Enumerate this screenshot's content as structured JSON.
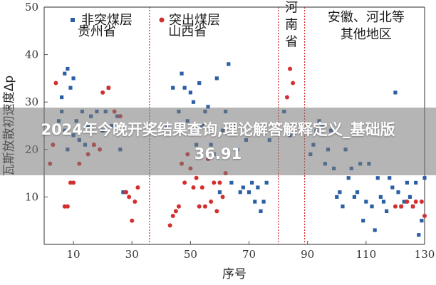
{
  "banner": {
    "title": "2024年今晚开奖结果查询,理论解答解释定义_基础版36.91"
  },
  "colors": {
    "non_outburst": "#2b5fa3",
    "outburst": "#d32f2f",
    "divider": "#d32f2f",
    "axis": "#555555"
  },
  "chart_data": {
    "type": "scatter",
    "xlabel": "序号",
    "ylabel": "瓦斯放散初速度Δp",
    "xlim": [
      0,
      130
    ],
    "ylim": [
      0,
      50
    ],
    "xticks": [
      10,
      30,
      50,
      70,
      90,
      110,
      130
    ],
    "yticks": [
      10,
      20,
      30,
      40,
      50
    ],
    "tick_labels_x": [
      "10",
      "30",
      "50",
      "70",
      "90",
      "110",
      "130"
    ],
    "tick_labels_y": [
      "10",
      "20",
      "30",
      "40",
      "50"
    ],
    "legend": [
      {
        "name": "非突煤层",
        "marker": "square"
      },
      {
        "name": "突出煤层",
        "marker": "circle"
      }
    ],
    "dividers": [
      36,
      80,
      89
    ],
    "regions": [
      {
        "lines": [
          "贵州省"
        ],
        "x_center": 18,
        "y_top": 44
      },
      {
        "lines": [
          "山西省"
        ],
        "x_center": 49,
        "y_top": 44
      },
      {
        "lines": [
          "河",
          "南",
          "省"
        ],
        "x_center": 84.5,
        "y_top": 49
      },
      {
        "lines": [
          "安徽、河北等",
          "其他地区"
        ],
        "x_center": 110,
        "y_top": 47
      }
    ],
    "series": [
      {
        "name": "非突煤层",
        "marker": "square",
        "points": [
          [
            5,
            26
          ],
          [
            6,
            31
          ],
          [
            6,
            28
          ],
          [
            7,
            36
          ],
          [
            7,
            24
          ],
          [
            8,
            37
          ],
          [
            8,
            20
          ],
          [
            9,
            33
          ],
          [
            10,
            35
          ],
          [
            10,
            23
          ],
          [
            11,
            26
          ],
          [
            12,
            22
          ],
          [
            13,
            28
          ],
          [
            14,
            21
          ],
          [
            15,
            25
          ],
          [
            16,
            27
          ],
          [
            17,
            21
          ],
          [
            18,
            28
          ],
          [
            20,
            24
          ],
          [
            21,
            28
          ],
          [
            22,
            33
          ],
          [
            23,
            25
          ],
          [
            25,
            27
          ],
          [
            26,
            20
          ],
          [
            27,
            11
          ],
          [
            42,
            25
          ],
          [
            44,
            33
          ],
          [
            46,
            28
          ],
          [
            47,
            36
          ],
          [
            48,
            33
          ],
          [
            49,
            26
          ],
          [
            50,
            32
          ],
          [
            51,
            30
          ],
          [
            51,
            24
          ],
          [
            52,
            21
          ],
          [
            53,
            34
          ],
          [
            54,
            25
          ],
          [
            55,
            28
          ],
          [
            56,
            29
          ],
          [
            57,
            21
          ],
          [
            58,
            19
          ],
          [
            59,
            35
          ],
          [
            60,
            11
          ],
          [
            61,
            24
          ],
          [
            62,
            28
          ],
          [
            63,
            38
          ],
          [
            64,
            13
          ],
          [
            65,
            25
          ],
          [
            66,
            20
          ],
          [
            67,
            11
          ],
          [
            68,
            12
          ],
          [
            69,
            22
          ],
          [
            70,
            11
          ],
          [
            71,
            13
          ],
          [
            72,
            9
          ],
          [
            73,
            12
          ],
          [
            74,
            7
          ],
          [
            75,
            9
          ],
          [
            76,
            13
          ],
          [
            77,
            22
          ],
          [
            82,
            28
          ],
          [
            84,
            23
          ],
          [
            91,
            19
          ],
          [
            92,
            21
          ],
          [
            93,
            24
          ],
          [
            94,
            26
          ],
          [
            95,
            25
          ],
          [
            96,
            17
          ],
          [
            97,
            20
          ],
          [
            98,
            24
          ],
          [
            99,
            16
          ],
          [
            100,
            10
          ],
          [
            101,
            11
          ],
          [
            102,
            8
          ],
          [
            103,
            20
          ],
          [
            104,
            14
          ],
          [
            105,
            16
          ],
          [
            106,
            10
          ],
          [
            107,
            11
          ],
          [
            108,
            17
          ],
          [
            109,
            5
          ],
          [
            110,
            9
          ],
          [
            111,
            17
          ],
          [
            112,
            8
          ],
          [
            113,
            3
          ],
          [
            114,
            14
          ],
          [
            115,
            10
          ],
          [
            116,
            9
          ],
          [
            117,
            7
          ],
          [
            118,
            14
          ],
          [
            119,
            12
          ],
          [
            120,
            32
          ],
          [
            121,
            11
          ],
          [
            122,
            8
          ],
          [
            123,
            9
          ],
          [
            124,
            13
          ],
          [
            125,
            10
          ],
          [
            126,
            8
          ],
          [
            127,
            13
          ],
          [
            128,
            2
          ],
          [
            129,
            5
          ],
          [
            130,
            14
          ]
        ]
      },
      {
        "name": "突出煤层",
        "marker": "circle",
        "points": [
          [
            2,
            17
          ],
          [
            3,
            21
          ],
          [
            4,
            34
          ],
          [
            7,
            8
          ],
          [
            8,
            8
          ],
          [
            9,
            13
          ],
          [
            10,
            13
          ],
          [
            12,
            17
          ],
          [
            15,
            19
          ],
          [
            17,
            21
          ],
          [
            19,
            20
          ],
          [
            20,
            32
          ],
          [
            22,
            33
          ],
          [
            24,
            28
          ],
          [
            26,
            27
          ],
          [
            28,
            11
          ],
          [
            29,
            10
          ],
          [
            30,
            5
          ],
          [
            31,
            9
          ],
          [
            32,
            12
          ],
          [
            43,
            4
          ],
          [
            44,
            6
          ],
          [
            45,
            7
          ],
          [
            46,
            8
          ],
          [
            47,
            17
          ],
          [
            48,
            13
          ],
          [
            49,
            19
          ],
          [
            50,
            16
          ],
          [
            51,
            12
          ],
          [
            52,
            14
          ],
          [
            53,
            8
          ],
          [
            54,
            12
          ],
          [
            55,
            8
          ],
          [
            56,
            18
          ],
          [
            57,
            9
          ],
          [
            58,
            13
          ],
          [
            59,
            7
          ],
          [
            60,
            13
          ],
          [
            61,
            10
          ],
          [
            62,
            15
          ],
          [
            83,
            31
          ],
          [
            84,
            37
          ],
          [
            85,
            34
          ],
          [
            120,
            8
          ],
          [
            122,
            8
          ],
          [
            124,
            9
          ],
          [
            126,
            8
          ],
          [
            127,
            9
          ],
          [
            129,
            9
          ],
          [
            130,
            6
          ]
        ]
      }
    ]
  }
}
